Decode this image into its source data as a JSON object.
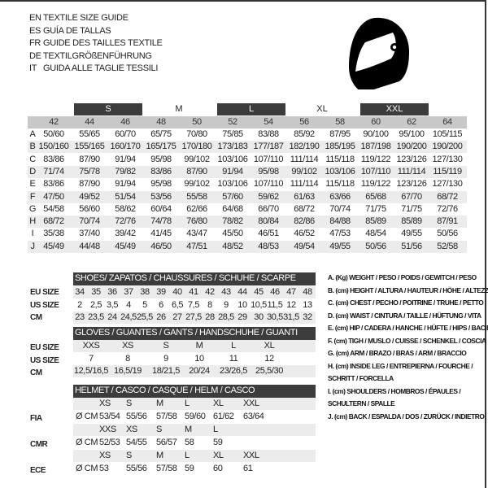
{
  "titles": [
    {
      "code": "EN",
      "text": "TEXTILE SIZE GUIDE"
    },
    {
      "code": "ES",
      "text": "GUÍA DE TALLAS"
    },
    {
      "code": "FR",
      "text": "GUIDE DES TAILLES TEXTILE"
    },
    {
      "code": "DE",
      "text": "TEXTILGRÖßENFÜHRUNG"
    },
    {
      "code": "IT",
      "text": "GUIDA ALLE TAGLIE TESSILI"
    }
  ],
  "logo_icon": "helmet-icon",
  "colors": {
    "header_dark": "#3c3c3c",
    "column_header": "#c8c8c8",
    "row_stripe": "#ececec"
  },
  "textile": {
    "groups": [
      "S",
      "M",
      "L",
      "XL",
      "XXL"
    ],
    "columns": [
      "42",
      "44",
      "46",
      "48",
      "50",
      "52",
      "54",
      "56",
      "58",
      "60",
      "62",
      "64"
    ],
    "rows": [
      {
        "letter": "A",
        "values": [
          "50/60",
          "55/65",
          "60/70",
          "65/75",
          "70/80",
          "75/85",
          "83/88",
          "85/92",
          "87/95",
          "90/100",
          "95/100",
          "105/115"
        ]
      },
      {
        "letter": "B",
        "values": [
          "150/160",
          "155/165",
          "160/170",
          "165/175",
          "170/180",
          "173/183",
          "177/187",
          "182/190",
          "185/195",
          "187/198",
          "190/200",
          "190/200"
        ]
      },
      {
        "letter": "C",
        "values": [
          "83/86",
          "87/90",
          "91/94",
          "95/98",
          "99/102",
          "103/106",
          "107/110",
          "111/114",
          "115/118",
          "119/122",
          "123/126",
          "127/130"
        ]
      },
      {
        "letter": "D",
        "values": [
          "71/74",
          "75/78",
          "79/82",
          "83/86",
          "87/90",
          "91/94",
          "95/98",
          "99/102",
          "103/106",
          "107/110",
          "111/114",
          "115/119"
        ]
      },
      {
        "letter": "E",
        "values": [
          "83/86",
          "87/90",
          "91/94",
          "95/98",
          "99/102",
          "103/106",
          "107/110",
          "111/114",
          "115/118",
          "119/122",
          "123/126",
          "127/130"
        ]
      },
      {
        "letter": "F",
        "values": [
          "47/50",
          "49/52",
          "51/54",
          "53/56",
          "55/58",
          "57/60",
          "59/62",
          "61/63",
          "63/66",
          "65/68",
          "67/70",
          "68/72"
        ]
      },
      {
        "letter": "G",
        "values": [
          "54/58",
          "56/60",
          "58/62",
          "60/64",
          "62/66",
          "64/68",
          "66/70",
          "68/72",
          "70/74",
          "71/75",
          "71/75",
          "72/76"
        ]
      },
      {
        "letter": "H",
        "values": [
          "68/72",
          "70/74",
          "72/76",
          "74/78",
          "76/80",
          "78/82",
          "80/84",
          "82/86",
          "84/88",
          "85/89",
          "85/89",
          "87/91"
        ]
      },
      {
        "letter": "I",
        "values": [
          "35/38",
          "37/40",
          "39/42",
          "41/45",
          "43/47",
          "45/50",
          "46/51",
          "46/52",
          "47/53",
          "48/54",
          "49/55",
          "50/56"
        ]
      },
      {
        "letter": "J",
        "values": [
          "45/49",
          "44/48",
          "45/49",
          "46/50",
          "47/51",
          "48/52",
          "48/53",
          "49/54",
          "49/55",
          "50/56",
          "51/56",
          "52/58"
        ]
      }
    ]
  },
  "shoes": {
    "title": "SHOES/ ZAPATOS / CHAUSSURES / SCHUHE / SCARPE",
    "rows": [
      {
        "label": "EU SIZE",
        "values": [
          "34",
          "35",
          "36",
          "37",
          "38",
          "39",
          "40",
          "41",
          "42",
          "43",
          "44",
          "45",
          "46",
          "47",
          "48"
        ]
      },
      {
        "label": "US SIZE",
        "values": [
          "2",
          "2,5",
          "3,5",
          "4",
          "5",
          "6",
          "6,5",
          "7,5",
          "8",
          "9",
          "10",
          "10,5",
          "11,5",
          "12",
          "13"
        ]
      },
      {
        "label": "CM",
        "values": [
          "23",
          "23,5",
          "24",
          "24,5",
          "25,5",
          "26",
          "27",
          "27,5",
          "28",
          "28,5",
          "29",
          "30",
          "30,5",
          "31,5",
          "32"
        ]
      }
    ]
  },
  "gloves": {
    "title": "GLOVES / GUANTES / GANTS / HANDSCHUHE / GUANTI",
    "rows": [
      {
        "label": "EU SIZE",
        "values": [
          "XXS",
          "XS",
          "S",
          "M",
          "L",
          "XL"
        ]
      },
      {
        "label": "US SIZE",
        "values": [
          "7",
          "8",
          "9",
          "10",
          "11",
          "12"
        ]
      },
      {
        "label": "CM",
        "values": [
          "12,5/16,5",
          "16,5/19",
          "18/21,5",
          "20/24",
          "23/26,5",
          "25,5/30"
        ]
      }
    ]
  },
  "helmet": {
    "title": "HELMET / CASCO / CASQUE / HELM / CASCO",
    "unit": "Ø CM",
    "standards": [
      {
        "label": "FIA",
        "sizes": [
          "XS",
          "S",
          "M",
          "L",
          "XL",
          "XXL"
        ],
        "values": [
          "53/54",
          "55/56",
          "57/58",
          "59/60",
          "61/62",
          "63/64"
        ]
      },
      {
        "label": "CMR",
        "sizes": [
          "XXS",
          "XS",
          "S",
          "M",
          "L"
        ],
        "values": [
          "52/53",
          "54/55",
          "56/57",
          "58",
          "59"
        ]
      },
      {
        "label": "ECE",
        "sizes": [
          "XS",
          "S",
          "M",
          "L",
          "XL",
          "XXL"
        ],
        "values": [
          "53",
          "55/56",
          "57/58",
          "59",
          "60",
          "61"
        ]
      }
    ]
  },
  "legend": [
    "A. (Kg) WEIGHT / PESO / POIDS / GEWITCH / PESO",
    "B. (cm) HEIGHT / ALTURA / HAUTEUR / HÖHE / ALTEZZA",
    "C. (cm) CHEST / PECHO / POITRINE / TRUHE / PETTO",
    "D. (cm) WAIST / CINTURA / TAILLE / HÜFTUNG / VITA",
    "E. (cm) HIP / CADERA / HANCHE / HÜFTE / HIPS /  BACINO",
    "F.  (cm) TIGH / MUSLO / CUISSE / SCHENKEL / COSCIA",
    "G. (cm) ARM  / BRAZO / BRAS / ARM / BRACCIO",
    "H. (cm) INSIDE LEG / ENTREPIERNA / FOURCHE /",
    "SCHRITT / FORCELLA",
    "I.  (cm) SHOULDERS / HOMBROS / ÉPAULES /",
    "SCHULTERN / SPALLE",
    "J. (cm) BACK / ESPALDA / DOS / ZURÜCK / INDIETRO"
  ]
}
